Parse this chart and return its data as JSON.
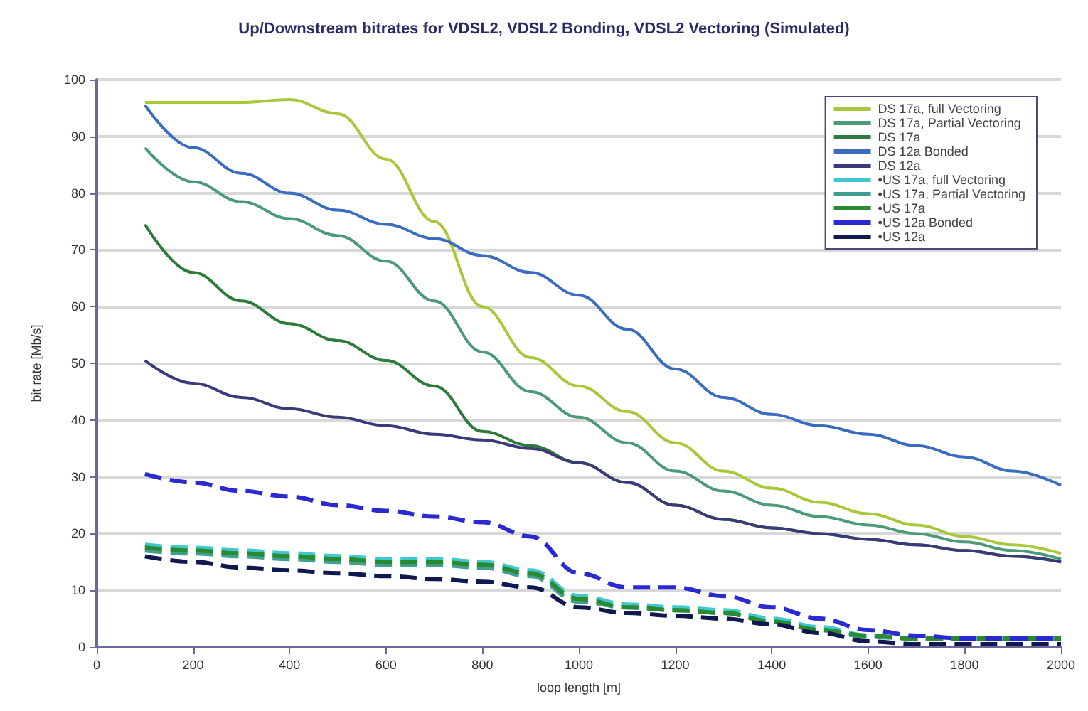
{
  "chart_data": {
    "type": "line",
    "title": "Up/Downstream bitrates for VDSL2, VDSL2 Bonding, VDSL2 Vectoring (Simulated)",
    "xlabel": "loop length [m]",
    "ylabel": "bit rate [Mb/s]",
    "x": [
      100,
      200,
      300,
      400,
      500,
      600,
      700,
      800,
      900,
      1000,
      1100,
      1200,
      1300,
      1400,
      1500,
      1600,
      1700,
      1800,
      1900,
      2000
    ],
    "series": [
      {
        "name": "DS 17a, full Vectoring",
        "color": "#a8c83c",
        "line_style": "solid",
        "values": [
          96,
          96,
          96,
          96.5,
          94,
          86,
          75,
          60,
          51,
          46,
          41.5,
          36,
          31,
          28,
          25.5,
          23.5,
          21.5,
          19.5,
          18,
          16.5
        ]
      },
      {
        "name": "DS 17a, Partial Vectoring",
        "color": "#4a9a78",
        "line_style": "solid",
        "values": [
          88,
          82,
          78.5,
          75.5,
          72.5,
          68,
          61,
          52,
          45,
          40.5,
          36,
          31,
          27.5,
          25,
          23,
          21.5,
          20,
          18.5,
          17,
          15.5
        ]
      },
      {
        "name": "DS 17a",
        "color": "#2e7a3a",
        "line_style": "solid",
        "values": [
          74.5,
          66,
          61,
          57,
          54,
          50.5,
          46,
          38,
          35.5,
          32.5,
          29,
          25,
          22.5,
          21,
          20,
          19,
          18,
          17,
          16,
          15
        ]
      },
      {
        "name": "DS 12a Bonded",
        "color": "#3a6cc0",
        "line_style": "solid",
        "values": [
          95.5,
          88,
          83.5,
          80,
          77,
          74.5,
          72,
          69,
          66,
          62,
          56,
          49,
          44,
          41,
          39,
          37.5,
          35.5,
          33.5,
          31,
          28.5
        ]
      },
      {
        "name": "DS 12a",
        "color": "#3a3a7a",
        "line_style": "solid",
        "values": [
          50.5,
          46.5,
          44,
          42,
          40.5,
          39,
          37.5,
          36.5,
          35,
          32.5,
          29,
          25,
          22.5,
          21,
          20,
          19,
          18,
          17,
          16,
          15
        ]
      },
      {
        "name": "•US 17a, full Vectoring",
        "color": "#40c8d0",
        "line_style": "dashed",
        "values": [
          18,
          17.5,
          17,
          16.5,
          16,
          15.5,
          15.5,
          15,
          13.5,
          9,
          7.5,
          7,
          6.5,
          5,
          3.5,
          2,
          1.5,
          1.5,
          1.5,
          1.5
        ]
      },
      {
        "name": "•US 17a, Partial Vectoring",
        "color": "#40a090",
        "line_style": "dashed",
        "values": [
          17,
          16.5,
          16,
          15.5,
          15,
          14.5,
          14.5,
          14,
          12.5,
          8,
          7,
          6.5,
          6,
          4.5,
          3,
          1.8,
          1.5,
          1.5,
          1.5,
          1.5
        ]
      },
      {
        "name": "•US 17a",
        "color": "#2a8a30",
        "line_style": "dashed",
        "values": [
          17.5,
          17,
          16.5,
          16,
          15.5,
          15,
          15,
          14.5,
          13,
          8.5,
          7,
          6.5,
          6,
          4.5,
          3,
          2,
          1.5,
          1.5,
          1.5,
          1.5
        ]
      },
      {
        "name": "•US 12a Bonded",
        "color": "#2a2ad0",
        "line_style": "dashed",
        "values": [
          30.5,
          29,
          27.5,
          26.5,
          25,
          24,
          23,
          22,
          19.5,
          13,
          10.5,
          10.5,
          9,
          7,
          5,
          3,
          2,
          1.5,
          1.5,
          1.5
        ]
      },
      {
        "name": "•US 12a",
        "color": "#101850",
        "line_style": "dashed",
        "values": [
          16,
          15,
          14,
          13.5,
          13,
          12.5,
          12,
          11.5,
          10.5,
          7,
          6,
          5.5,
          5,
          4,
          2.5,
          1,
          0.5,
          0.5,
          0.5,
          0.5
        ]
      }
    ],
    "xlim": [
      0,
      2000
    ],
    "xticks": [
      0,
      200,
      400,
      600,
      800,
      1000,
      1200,
      1400,
      1600,
      1800,
      2000
    ],
    "ylim": [
      0,
      100
    ],
    "yticks": [
      0,
      10,
      20,
      30,
      40,
      50,
      60,
      70,
      80,
      90,
      100
    ],
    "grid": "y",
    "legend": "top right",
    "marker": "none"
  }
}
